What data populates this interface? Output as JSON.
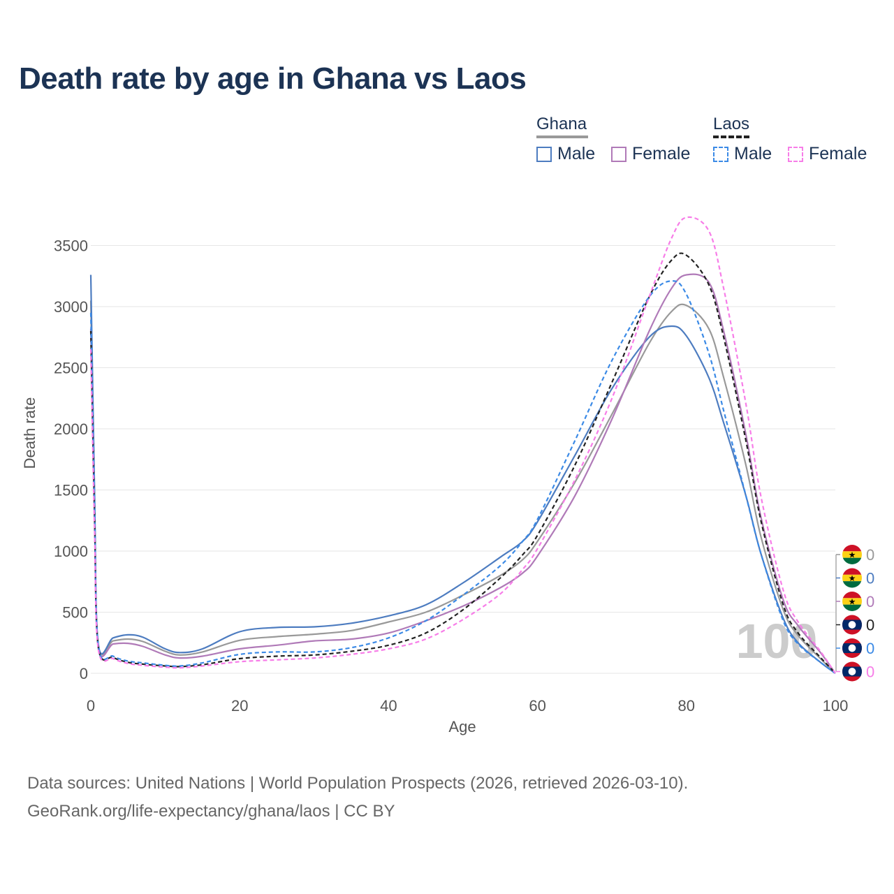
{
  "title": "Death rate by age in Ghana vs Laos",
  "legend": {
    "groups": [
      {
        "name": "Ghana",
        "items": [
          {
            "label": "Male",
            "color": "#4d7cc0",
            "dashed": false
          },
          {
            "label": "Female",
            "color": "#b07ab8",
            "dashed": false
          }
        ]
      },
      {
        "name": "Laos",
        "items": [
          {
            "label": "Male",
            "color": "#3b8ae6",
            "dashed": true
          },
          {
            "label": "Female",
            "color": "#f77de8",
            "dashed": true
          }
        ]
      }
    ]
  },
  "footer": {
    "source": "Data sources: United Nations | World Population Prospects (2026, retrieved 2026-03-10).",
    "link": "GeoRank.org/life-expectancy/ghana/laos | CC BY"
  },
  "watermark": "100",
  "chart_data": {
    "type": "line",
    "title": "Death rate by age in Ghana vs Laos",
    "xlabel": "Age",
    "ylabel": "Death rate",
    "xlim": [
      0,
      100
    ],
    "ylim": [
      0,
      3800
    ],
    "xticks": [
      0,
      20,
      40,
      60,
      80,
      100
    ],
    "yticks": [
      0,
      500,
      1000,
      1500,
      2000,
      2500,
      3000,
      3500
    ],
    "end_labels": [
      {
        "flag": "ghana",
        "value": "0",
        "color": "#999999"
      },
      {
        "flag": "ghana",
        "value": "0",
        "color": "#4d7cc0"
      },
      {
        "flag": "ghana",
        "value": "0",
        "color": "#b07ab8"
      },
      {
        "flag": "laos",
        "value": "0",
        "color": "#222222"
      },
      {
        "flag": "laos",
        "value": "0",
        "color": "#3b8ae6"
      },
      {
        "flag": "laos",
        "value": "0",
        "color": "#f77de8"
      }
    ],
    "series": [
      {
        "name": "Ghana Total",
        "color": "#999999",
        "dashed": false,
        "x": [
          0,
          0.5,
          1,
          3,
          5,
          7,
          10,
          12,
          15,
          20,
          25,
          30,
          35,
          40,
          45,
          50,
          55,
          58,
          60,
          65,
          70,
          75,
          78,
          80,
          83,
          85,
          88,
          90,
          93,
          95,
          98,
          100
        ],
        "y": [
          3050,
          1400,
          230,
          265,
          280,
          260,
          180,
          150,
          175,
          270,
          300,
          320,
          350,
          420,
          500,
          640,
          800,
          930,
          1080,
          1560,
          2120,
          2700,
          2960,
          3010,
          2820,
          2420,
          1700,
          1120,
          520,
          310,
          120,
          0
        ]
      },
      {
        "name": "Ghana Male",
        "color": "#4d7cc0",
        "dashed": false,
        "x": [
          0,
          0.5,
          1,
          3,
          5,
          7,
          10,
          12,
          15,
          20,
          25,
          30,
          35,
          40,
          45,
          50,
          55,
          58,
          60,
          65,
          70,
          75,
          78,
          80,
          83,
          85,
          88,
          90,
          93,
          95,
          98,
          100
        ],
        "y": [
          3260,
          1500,
          240,
          290,
          315,
          295,
          200,
          170,
          200,
          340,
          375,
          380,
          410,
          470,
          560,
          740,
          950,
          1080,
          1240,
          1780,
          2330,
          2750,
          2840,
          2760,
          2420,
          2050,
          1450,
          980,
          450,
          250,
          90,
          0
        ]
      },
      {
        "name": "Ghana Female",
        "color": "#b07ab8",
        "dashed": false,
        "x": [
          0,
          0.5,
          1,
          3,
          5,
          7,
          10,
          12,
          15,
          20,
          25,
          30,
          35,
          40,
          45,
          50,
          55,
          58,
          60,
          65,
          70,
          75,
          78,
          80,
          83,
          85,
          88,
          90,
          93,
          95,
          98,
          100
        ],
        "y": [
          2820,
          1300,
          210,
          240,
          245,
          220,
          150,
          125,
          140,
          200,
          230,
          265,
          280,
          330,
          430,
          550,
          700,
          820,
          960,
          1450,
          2080,
          2800,
          3150,
          3260,
          3200,
          2800,
          1950,
          1280,
          600,
          390,
          170,
          0
        ]
      },
      {
        "name": "Laos Total",
        "color": "#222222",
        "dashed": true,
        "x": [
          0,
          0.5,
          1,
          3,
          5,
          7,
          10,
          12,
          15,
          20,
          25,
          30,
          35,
          40,
          45,
          50,
          55,
          58,
          60,
          65,
          70,
          75,
          78,
          80,
          83,
          85,
          88,
          90,
          93,
          95,
          98,
          100
        ],
        "y": [
          2800,
          1300,
          220,
          130,
          90,
          75,
          60,
          55,
          70,
          120,
          140,
          150,
          180,
          230,
          330,
          520,
          780,
          970,
          1130,
          1700,
          2380,
          3080,
          3380,
          3420,
          3180,
          2750,
          1900,
          1250,
          560,
          330,
          130,
          0
        ]
      },
      {
        "name": "Laos Male",
        "color": "#3b8ae6",
        "dashed": true,
        "x": [
          0,
          0.5,
          1,
          3,
          5,
          7,
          10,
          12,
          15,
          20,
          25,
          30,
          35,
          40,
          45,
          50,
          55,
          58,
          60,
          65,
          70,
          75,
          78,
          80,
          83,
          85,
          88,
          90,
          93,
          95,
          98,
          100
        ],
        "y": [
          2950,
          1400,
          230,
          140,
          100,
          85,
          65,
          60,
          85,
          155,
          175,
          175,
          210,
          290,
          430,
          640,
          880,
          1080,
          1260,
          1900,
          2560,
          3080,
          3210,
          3100,
          2620,
          2150,
          1450,
          980,
          430,
          240,
          90,
          0
        ]
      },
      {
        "name": "Laos Female",
        "color": "#f77de8",
        "dashed": true,
        "x": [
          0,
          0.5,
          1,
          3,
          5,
          7,
          10,
          12,
          15,
          20,
          25,
          30,
          35,
          40,
          45,
          50,
          55,
          58,
          60,
          65,
          70,
          75,
          78,
          80,
          83,
          85,
          88,
          90,
          93,
          95,
          98,
          100
        ],
        "y": [
          2650,
          1200,
          200,
          120,
          80,
          65,
          50,
          45,
          60,
          95,
          110,
          125,
          155,
          200,
          280,
          440,
          650,
          850,
          1020,
          1580,
          2250,
          3080,
          3560,
          3730,
          3620,
          3150,
          2200,
          1450,
          680,
          420,
          180,
          0
        ]
      }
    ]
  }
}
